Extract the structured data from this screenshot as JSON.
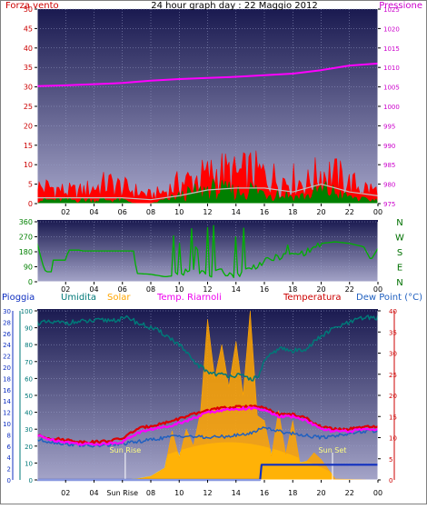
{
  "window": {
    "title": "24 hour graph day : 22 Maggio 2012"
  },
  "colors": {
    "wind": "#ff0000",
    "gust": "#008000",
    "avg": "#c0c0c0",
    "pressure": "#ff00ff",
    "dir": "#00b000",
    "compass": "#007000",
    "rain": "#1030c0",
    "humidity": "#007878",
    "solar": "#ffa500",
    "solar_fill": "#ffff30",
    "temp_riarnoli": "#ff00ff",
    "temperature": "#dd0000",
    "dewpoint": "#2060c0",
    "axis": "#ffffff",
    "grid": "#9aa0c8",
    "suntext": "#ffff80",
    "sunline": "#ffffff"
  },
  "chart_data": [
    {
      "type": "line",
      "title": "24 hour graph day : 22 Maggio 2012",
      "left_axis_label": "Forza vento",
      "right_axis_label": "Pressione",
      "x_ticks": [
        "02",
        "04",
        "06",
        "08",
        "10",
        "12",
        "14",
        "16",
        "18",
        "20",
        "22",
        "00"
      ],
      "xlim": [
        0,
        24
      ],
      "ylim": [
        0,
        50
      ],
      "yticks": [
        0,
        5,
        10,
        15,
        20,
        25,
        30,
        35,
        40,
        45,
        50
      ],
      "y2lim": [
        975,
        1025
      ],
      "y2ticks": [
        975,
        980,
        985,
        990,
        995,
        1000,
        1005,
        1010,
        1015,
        1020,
        1025
      ],
      "series": [
        {
          "name": "Pressione",
          "axis": "right",
          "x": [
            0,
            2,
            4,
            6,
            8,
            10,
            12,
            14,
            16,
            18,
            20,
            22,
            24
          ],
          "y": [
            1005.2,
            1005.4,
            1005.7,
            1006.0,
            1006.6,
            1007.0,
            1007.3,
            1007.6,
            1008.0,
            1008.4,
            1009.3,
            1010.5,
            1011.0
          ]
        },
        {
          "axis": "left",
          "style": "red-area",
          "x": [
            0,
            1,
            2,
            3,
            4,
            5,
            6,
            7,
            8,
            9,
            10,
            11,
            12,
            13,
            14,
            15,
            16,
            17,
            18,
            19,
            20,
            21,
            22,
            23,
            24
          ],
          "y": [
            4,
            4,
            3,
            3,
            4,
            5,
            4,
            3,
            2,
            3,
            5,
            6,
            7,
            8,
            7,
            8,
            7,
            6,
            6,
            5,
            8,
            7,
            5,
            4,
            3
          ]
        },
        {
          "axis": "left",
          "style": "green-area",
          "x": [
            0,
            1,
            2,
            3,
            4,
            5,
            6,
            7,
            8,
            9,
            10,
            11,
            12,
            13,
            14,
            15,
            16,
            17,
            18,
            19,
            20,
            21,
            22,
            23,
            24
          ],
          "y": [
            1,
            1,
            1,
            1,
            1,
            1,
            1,
            0,
            0,
            1,
            2,
            3,
            4,
            4,
            3,
            4,
            3,
            3,
            2,
            2,
            4,
            3,
            2,
            1,
            1
          ]
        },
        {
          "axis": "left",
          "style": "grey-line",
          "x": [
            0,
            2,
            4,
            6,
            8,
            10,
            12,
            14,
            16,
            18,
            20,
            22,
            24
          ],
          "y": [
            1.5,
            1.5,
            1.5,
            1.5,
            1,
            2,
            3.5,
            4,
            4,
            3,
            5,
            3,
            2
          ]
        }
      ]
    },
    {
      "type": "line",
      "ylim": [
        0,
        360
      ],
      "yticks": [
        0,
        90,
        180,
        270,
        360
      ],
      "compass_labels": [
        "N",
        "W",
        "S",
        "E",
        "N"
      ],
      "x_ticks": [
        "02",
        "04",
        "06",
        "08",
        "10",
        "12",
        "14",
        "16",
        "18",
        "20",
        "22",
        "00"
      ],
      "xlim": [
        0,
        24
      ],
      "series": [
        {
          "x": [
            0,
            0.4,
            0.6,
            1.0,
            1.1,
            2.0,
            2.2,
            3.0,
            3.2,
            6.8,
            7.0,
            8.0,
            9.0,
            10.0,
            11.0,
            12.0,
            13.0,
            14.0,
            15.0,
            16.0,
            17.0,
            18.0,
            19.0,
            20.0,
            21.0,
            22.0,
            23.0,
            23.5,
            24.0
          ],
          "y": [
            230,
            100,
            60,
            60,
            130,
            130,
            190,
            190,
            185,
            185,
            50,
            45,
            30,
            40,
            90,
            40,
            60,
            40,
            80,
            120,
            150,
            160,
            180,
            230,
            240,
            230,
            210,
            130,
            200
          ]
        }
      ]
    },
    {
      "type": "area",
      "x_ticks": [
        "02",
        "04",
        "Sun Rise",
        "08",
        "10",
        "12",
        "14",
        "16",
        "18",
        "20",
        "22",
        "00"
      ],
      "xlim": [
        0,
        24
      ],
      "legend": [
        "Pioggia",
        "Umidita",
        "Solar",
        "Temp. Riarnoli",
        "Temperatura",
        "Dew Point (°C)"
      ],
      "axis_rain": {
        "label": "Pioggia",
        "ylim": [
          0,
          30
        ],
        "yticks": [
          0,
          2,
          4,
          6,
          8,
          10,
          12,
          14,
          16,
          18,
          20,
          22,
          24,
          26,
          28,
          30
        ]
      },
      "axis_humidity": {
        "label": "Umidita",
        "ylim": [
          0,
          100
        ],
        "yticks": [
          0,
          10,
          20,
          30,
          40,
          50,
          60,
          70,
          80,
          90,
          100
        ]
      },
      "axis_temperature": {
        "label": "Dew Point (°C)",
        "ylim": [
          0,
          40
        ],
        "yticks": [
          0,
          5,
          10,
          15,
          20,
          25,
          30,
          35,
          40
        ]
      },
      "annotations": [
        {
          "text": "Sun Rise",
          "x": 6.2
        },
        {
          "text": "Sun Set",
          "x": 20.8
        }
      ],
      "series": [
        {
          "name": "Umidita",
          "x": [
            0,
            2,
            4,
            6,
            6.5,
            7.0,
            8,
            9,
            10,
            11,
            12,
            13,
            14,
            15,
            15.5,
            16,
            17,
            18,
            19,
            20,
            21,
            22,
            23,
            24
          ],
          "y": [
            93,
            93,
            94,
            95,
            96,
            93,
            90,
            86,
            80,
            70,
            64,
            62,
            62,
            60,
            60,
            70,
            78,
            76,
            78,
            85,
            90,
            93,
            96,
            96
          ]
        },
        {
          "name": "Solar",
          "x": [
            0,
            6.2,
            7,
            8,
            9,
            9.5,
            10,
            10.5,
            11,
            11.5,
            12,
            12.5,
            13,
            13.5,
            14,
            14.5,
            15,
            15.5,
            16,
            16.5,
            17,
            17.5,
            18,
            18.5,
            19,
            19.5,
            20,
            21,
            24
          ],
          "y": [
            0,
            0,
            5,
            20,
            70,
            290,
            130,
            300,
            200,
            400,
            950,
            600,
            800,
            550,
            820,
            500,
            1000,
            380,
            350,
            140,
            410,
            150,
            350,
            100,
            110,
            160,
            120,
            5,
            0
          ]
        },
        {
          "name": "Temp. Riarnoli",
          "x": [
            0,
            1,
            2,
            3,
            4,
            5,
            6,
            7,
            8,
            9,
            10,
            11,
            12,
            13,
            14,
            15,
            16,
            17,
            18,
            19,
            20,
            21,
            22,
            23,
            24
          ],
          "y": [
            10.5,
            9.5,
            9.0,
            8.5,
            8.5,
            8.6,
            9.0,
            11.0,
            12.0,
            12.5,
            13.5,
            14.5,
            16.0,
            16.5,
            16.8,
            17.0,
            16.5,
            15.0,
            15.0,
            14.0,
            12.0,
            11.5,
            11.5,
            12.0,
            12.0
          ]
        },
        {
          "name": "Temperatura",
          "x": [
            0,
            1,
            2,
            3,
            4,
            5,
            6,
            7,
            8,
            9,
            10,
            11,
            12,
            13,
            14,
            15,
            16,
            17,
            18,
            19,
            20,
            21,
            22,
            23,
            24
          ],
          "y": [
            10.5,
            9.8,
            9.5,
            9.0,
            9.0,
            9.2,
            9.8,
            12.0,
            12.8,
            13.5,
            14.5,
            15.5,
            16.5,
            17.0,
            17.2,
            17.5,
            17.0,
            15.5,
            15.5,
            14.5,
            12.5,
            12.0,
            12.0,
            12.5,
            12.5
          ]
        },
        {
          "name": "Dew Point (°C)",
          "x": [
            0,
            2,
            4,
            6,
            8,
            10,
            12,
            14,
            15,
            16,
            17,
            18,
            19,
            20,
            21,
            22,
            23,
            24
          ],
          "y": [
            9.5,
            8.5,
            8.0,
            8.5,
            9.5,
            10.5,
            10.0,
            10.5,
            11.0,
            12.5,
            11.5,
            11.0,
            10.5,
            10.0,
            10.5,
            11.0,
            11.5,
            11.5
          ]
        },
        {
          "name": "Pioggia",
          "x": [
            0,
            15.7,
            15.8,
            24
          ],
          "y": [
            0,
            0,
            2.7,
            2.7
          ]
        }
      ]
    }
  ]
}
